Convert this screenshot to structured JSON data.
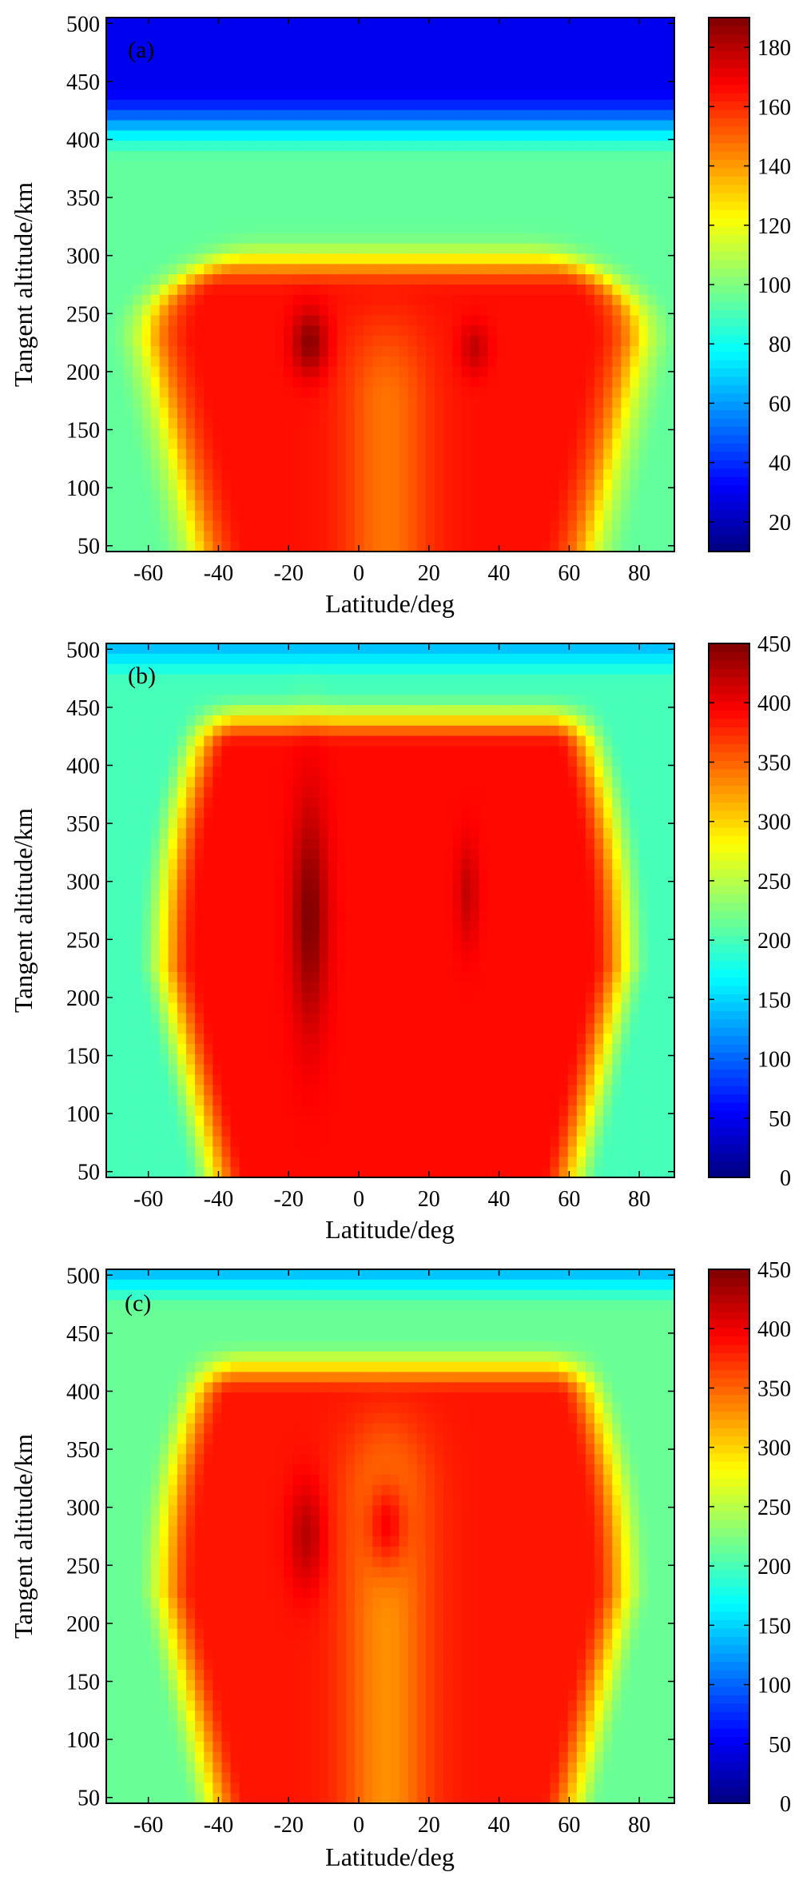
{
  "chart_data": [
    {
      "type": "heatmap",
      "panel_label": "(a)",
      "xlabel": "Latitude/deg",
      "ylabel": "Tangent altitude/km",
      "xlim": [
        -72,
        90
      ],
      "ylim": [
        45,
        505
      ],
      "x_ticks": [
        -60,
        -40,
        -20,
        0,
        20,
        40,
        60,
        80
      ],
      "y_ticks": [
        50,
        100,
        150,
        200,
        250,
        300,
        350,
        400,
        450,
        500
      ],
      "colorbar": {
        "min": 10,
        "max": 190,
        "ticks": [
          20,
          40,
          60,
          80,
          100,
          120,
          140,
          160,
          180
        ]
      },
      "field": {
        "background": 95,
        "edge_rise": 40,
        "top_value": 30,
        "top_start": 380,
        "top_end": 445,
        "main_value": 165,
        "main_top": 290,
        "lobes": [
          {
            "center_lat": -14,
            "center_alt": 225,
            "peak": 188,
            "lat_width": 5,
            "alt_width": 28
          },
          {
            "center_lat": 33,
            "center_alt": 220,
            "peak": 178,
            "lat_width": 4,
            "alt_width": 22
          }
        ],
        "center_dip": 18
      }
    },
    {
      "type": "heatmap",
      "panel_label": "(b)",
      "xlabel": "Latitude/deg",
      "ylabel": "Tangent altitude/km",
      "xlim": [
        -72,
        90
      ],
      "ylim": [
        45,
        505
      ],
      "x_ticks": [
        -60,
        -40,
        -20,
        0,
        20,
        40,
        60,
        80
      ],
      "y_ticks": [
        50,
        100,
        150,
        200,
        250,
        300,
        350,
        400,
        450,
        500
      ],
      "colorbar": {
        "min": 0,
        "max": 450,
        "ticks": [
          0,
          50,
          100,
          150,
          200,
          250,
          300,
          350,
          400,
          450
        ]
      },
      "field": {
        "background": 200,
        "edge_rise": 0,
        "top_value": 140,
        "top_start": 470,
        "top_end": 505,
        "main_value": 390,
        "main_top": 440,
        "lobes": [
          {
            "center_lat": -14,
            "center_alt": 270,
            "peak": 450,
            "lat_width": 5,
            "alt_width": 95
          },
          {
            "center_lat": 31,
            "center_alt": 290,
            "peak": 420,
            "lat_width": 3,
            "alt_width": 45
          }
        ],
        "center_dip": 0
      }
    },
    {
      "type": "heatmap",
      "panel_label": "(c)",
      "xlabel": "Latitude/deg",
      "ylabel": "Tangent altitude/km",
      "xlim": [
        -72,
        90
      ],
      "ylim": [
        45,
        505
      ],
      "x_ticks": [
        -60,
        -40,
        -20,
        0,
        20,
        40,
        60,
        80
      ],
      "y_ticks": [
        50,
        100,
        150,
        200,
        250,
        300,
        350,
        400,
        450,
        500
      ],
      "colorbar": {
        "min": 0,
        "max": 450,
        "ticks": [
          0,
          50,
          100,
          150,
          200,
          250,
          300,
          350,
          400,
          450
        ]
      },
      "field": {
        "background": 215,
        "edge_rise": 0,
        "top_value": 140,
        "top_start": 470,
        "top_end": 505,
        "main_value": 385,
        "main_top": 420,
        "lobes": [
          {
            "center_lat": -15,
            "center_alt": 275,
            "peak": 425,
            "lat_width": 5,
            "alt_width": 45
          },
          {
            "center_lat": 8,
            "center_alt": 285,
            "peak": 395,
            "lat_width": 6,
            "alt_width": 40
          }
        ],
        "center_dip": 55
      }
    }
  ]
}
